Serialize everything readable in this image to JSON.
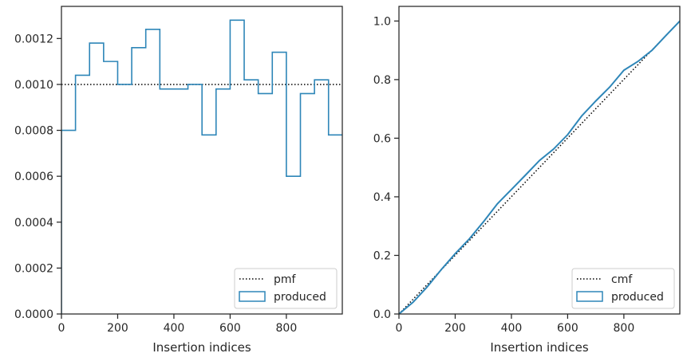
{
  "colors": {
    "produced": "#2e86b8",
    "reference": "#000000",
    "frame": "#262626"
  },
  "chart_data": [
    {
      "type": "histogram-step",
      "xlabel": "Insertion indices",
      "ylabel": "",
      "xlim": [
        0,
        999
      ],
      "ylim": [
        0,
        0.00134
      ],
      "xticks": [
        0,
        200,
        400,
        600,
        800
      ],
      "xtick_labels": [
        "0",
        "200",
        "400",
        "600",
        "800"
      ],
      "yticks": [
        0,
        0.0002,
        0.0004,
        0.0006,
        0.0008,
        0.001,
        0.0012
      ],
      "ytick_labels": [
        "0.0000",
        "0.0002",
        "0.0004",
        "0.0006",
        "0.0008",
        "0.0010",
        "0.0012"
      ],
      "legend_position": "lower-right",
      "series": [
        {
          "name": "pmf",
          "style": "dotted",
          "y": 0.001
        },
        {
          "name": "produced",
          "style": "step",
          "bin_edges": [
            0,
            50,
            100,
            150,
            200,
            250,
            300,
            350,
            400,
            450,
            500,
            550,
            600,
            650,
            700,
            750,
            800,
            850,
            900,
            950,
            1000
          ],
          "values": [
            0.0008,
            0.00104,
            0.00118,
            0.0011,
            0.001,
            0.00116,
            0.00124,
            0.00098,
            0.00098,
            0.001,
            0.00078,
            0.00098,
            0.00128,
            0.00102,
            0.00096,
            0.00114,
            0.0006,
            0.00096,
            0.00102,
            0.00078
          ]
        }
      ]
    },
    {
      "type": "line",
      "xlabel": "Insertion indices",
      "ylabel": "",
      "xlim": [
        0,
        999
      ],
      "ylim": [
        0,
        1.05
      ],
      "xticks": [
        0,
        200,
        400,
        600,
        800
      ],
      "xtick_labels": [
        "0",
        "200",
        "400",
        "600",
        "800"
      ],
      "yticks": [
        0,
        0.2,
        0.4,
        0.6,
        0.8,
        1.0
      ],
      "ytick_labels": [
        "0.0",
        "0.2",
        "0.4",
        "0.6",
        "0.8",
        "1.0"
      ],
      "legend_position": "lower-right",
      "series": [
        {
          "name": "cmf",
          "style": "dotted",
          "x": [
            0,
            999
          ],
          "y": [
            0,
            1.0
          ]
        },
        {
          "name": "produced",
          "style": "line",
          "x": [
            0,
            50,
            100,
            150,
            200,
            250,
            300,
            350,
            400,
            450,
            500,
            550,
            600,
            650,
            700,
            750,
            800,
            850,
            900,
            950,
            999
          ],
          "y": [
            0,
            0.04,
            0.092,
            0.151,
            0.206,
            0.256,
            0.314,
            0.376,
            0.425,
            0.474,
            0.524,
            0.563,
            0.612,
            0.676,
            0.727,
            0.775,
            0.832,
            0.862,
            0.9,
            0.951,
            1.0
          ]
        }
      ]
    }
  ],
  "legends": [
    {
      "items": [
        {
          "label": "pmf"
        },
        {
          "label": "produced"
        }
      ]
    },
    {
      "items": [
        {
          "label": "cmf"
        },
        {
          "label": "produced"
        }
      ]
    }
  ]
}
